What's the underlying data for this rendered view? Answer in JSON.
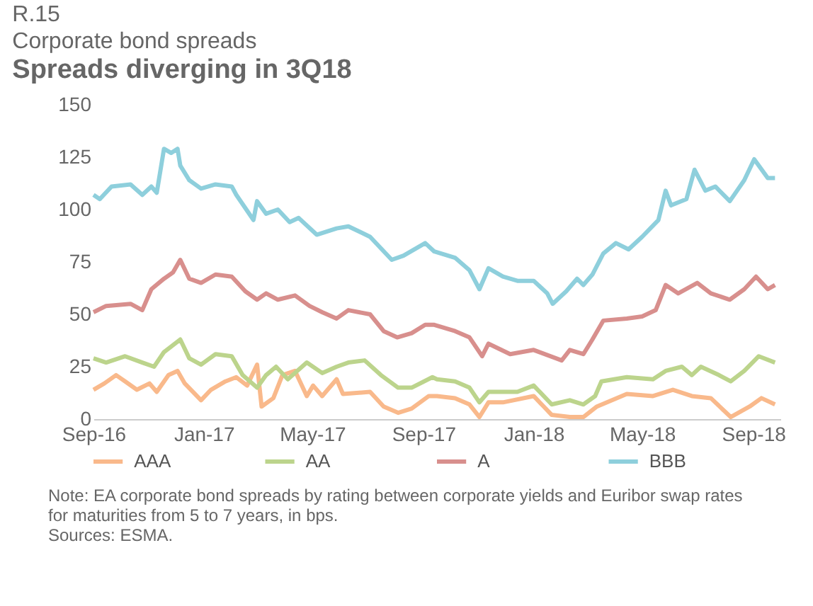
{
  "chart_data": {
    "type": "line",
    "title": "Corporate bond spreads",
    "subtitle": "Spreads diverging in 3Q18",
    "annotations": [
      "R.15",
      "Note: EA corporate bond spreads by rating between corporate yields and Euribor swap rates for maturities from 5 to 7 years, in bps.",
      "Sources: ESMA."
    ],
    "xlim": [
      "2016-09-01",
      "2018-10-01"
    ],
    "xticks": [
      {
        "value": "2016-09-01",
        "label": "Sep-16"
      },
      {
        "value": "2017-01-01",
        "label": "Jan-17"
      },
      {
        "value": "2017-05-01",
        "label": "May-17"
      },
      {
        "value": "2017-09-01",
        "label": "Sep-17"
      },
      {
        "value": "2018-01-01",
        "label": "Jan-18"
      },
      {
        "value": "2018-05-01",
        "label": "May-18"
      },
      {
        "value": "2018-09-01",
        "label": "Sep-18"
      }
    ],
    "ylim": [
      0,
      150
    ],
    "yticks": [
      0,
      25,
      50,
      75,
      100,
      125,
      150
    ],
    "grid": false,
    "legend": "bottom",
    "marker": "none",
    "line_style": "solid",
    "series": [
      {
        "name": "AAA",
        "color": "#f9b98b",
        "x": [
          "2016-09-01",
          "2016-09-13",
          "2016-09-26",
          "2016-10-06",
          "2016-10-19",
          "2016-11-02",
          "2016-11-10",
          "2016-11-23",
          "2016-12-03",
          "2016-12-11",
          "2016-12-29",
          "2017-01-09",
          "2017-01-25",
          "2017-02-06",
          "2017-02-18",
          "2017-03-01",
          "2017-03-06",
          "2017-03-19",
          "2017-03-29",
          "2017-04-12",
          "2017-04-25",
          "2017-05-02",
          "2017-05-12",
          "2017-05-28",
          "2017-06-04",
          "2017-07-04",
          "2017-07-19",
          "2017-08-04",
          "2017-08-19",
          "2017-09-07",
          "2017-09-16",
          "2017-10-06",
          "2017-10-22",
          "2017-11-02",
          "2017-11-12",
          "2017-11-28",
          "2018-01-01",
          "2018-01-21",
          "2018-02-10",
          "2018-02-25",
          "2018-03-12",
          "2018-04-14",
          "2018-05-13",
          "2018-06-04",
          "2018-06-25",
          "2018-07-16",
          "2018-08-07",
          "2018-08-28",
          "2018-09-10",
          "2018-09-25"
        ],
        "values": [
          14,
          17,
          21,
          18,
          14,
          17,
          13,
          21,
          23,
          17,
          9,
          14,
          18,
          20,
          16,
          26,
          6,
          10,
          21,
          23,
          11,
          16,
          11,
          19,
          12,
          13,
          6,
          3,
          5,
          11,
          11,
          10,
          7,
          1,
          8,
          8,
          11,
          2,
          1,
          1,
          6,
          12,
          11,
          14,
          11,
          10,
          1,
          6,
          10,
          7
        ]
      },
      {
        "name": "AA",
        "color": "#bcd48c",
        "x": [
          "2016-09-01",
          "2016-09-15",
          "2016-10-06",
          "2016-10-25",
          "2016-11-07",
          "2016-11-18",
          "2016-12-06",
          "2016-12-16",
          "2016-12-29",
          "2017-01-14",
          "2017-02-01",
          "2017-02-13",
          "2017-03-01",
          "2017-03-11",
          "2017-03-22",
          "2017-04-04",
          "2017-04-25",
          "2017-05-12",
          "2017-05-28",
          "2017-06-10",
          "2017-06-28",
          "2017-07-16",
          "2017-08-04",
          "2017-08-19",
          "2017-09-11",
          "2017-09-16",
          "2017-10-06",
          "2017-10-22",
          "2017-11-02",
          "2017-11-12",
          "2017-12-14",
          "2018-01-01",
          "2018-01-21",
          "2018-02-10",
          "2018-02-25",
          "2018-03-10",
          "2018-03-17",
          "2018-04-14",
          "2018-05-13",
          "2018-05-27",
          "2018-06-14",
          "2018-06-25",
          "2018-07-05",
          "2018-07-25",
          "2018-08-07",
          "2018-08-22",
          "2018-09-07",
          "2018-09-25"
        ],
        "values": [
          29,
          27,
          30,
          27,
          25,
          32,
          38,
          29,
          26,
          31,
          30,
          21,
          15,
          21,
          25,
          19,
          27,
          22,
          25,
          27,
          28,
          21,
          15,
          15,
          20,
          19,
          18,
          15,
          8,
          13,
          13,
          16,
          7,
          9,
          7,
          11,
          18,
          20,
          19,
          23,
          25,
          21,
          25,
          21,
          18,
          23,
          30,
          27
        ]
      },
      {
        "name": "A",
        "color": "#d88f8d",
        "x": [
          "2016-09-01",
          "2016-09-15",
          "2016-10-12",
          "2016-10-25",
          "2016-11-04",
          "2016-11-18",
          "2016-11-28",
          "2016-12-06",
          "2016-12-16",
          "2016-12-29",
          "2017-01-14",
          "2017-02-01",
          "2017-02-16",
          "2017-03-01",
          "2017-03-11",
          "2017-03-24",
          "2017-04-12",
          "2017-04-28",
          "2017-05-12",
          "2017-05-28",
          "2017-06-10",
          "2017-07-04",
          "2017-07-19",
          "2017-08-03",
          "2017-08-19",
          "2017-09-03",
          "2017-09-13",
          "2017-10-06",
          "2017-10-22",
          "2017-11-05",
          "2017-11-12",
          "2017-12-06",
          "2018-01-01",
          "2018-02-01",
          "2018-02-10",
          "2018-02-25",
          "2018-03-07",
          "2018-03-19",
          "2018-04-14",
          "2018-05-01",
          "2018-05-16",
          "2018-05-27",
          "2018-06-10",
          "2018-07-01",
          "2018-07-16",
          "2018-08-06",
          "2018-08-22",
          "2018-09-04",
          "2018-09-17",
          "2018-09-25"
        ],
        "values": [
          51,
          54,
          55,
          52,
          62,
          67,
          70,
          76,
          67,
          65,
          69,
          68,
          61,
          57,
          60,
          57,
          59,
          54,
          51,
          48,
          52,
          50,
          42,
          39,
          41,
          45,
          45,
          42,
          39,
          30,
          36,
          31,
          33,
          28,
          33,
          31,
          38,
          47,
          48,
          49,
          52,
          64,
          60,
          65,
          60,
          57,
          62,
          68,
          62,
          64
        ]
      },
      {
        "name": "BBB",
        "color": "#8ecfdc",
        "x": [
          "2016-09-01",
          "2016-09-08",
          "2016-09-21",
          "2016-10-12",
          "2016-10-25",
          "2016-11-04",
          "2016-11-10",
          "2016-11-18",
          "2016-11-26",
          "2016-12-03",
          "2016-12-06",
          "2016-12-16",
          "2016-12-29",
          "2017-01-14",
          "2017-02-01",
          "2017-02-06",
          "2017-02-25",
          "2017-03-01",
          "2017-03-11",
          "2017-03-24",
          "2017-04-06",
          "2017-04-16",
          "2017-05-06",
          "2017-05-28",
          "2017-06-10",
          "2017-07-04",
          "2017-07-28",
          "2017-08-10",
          "2017-09-03",
          "2017-09-13",
          "2017-10-06",
          "2017-10-22",
          "2017-11-02",
          "2017-11-12",
          "2017-11-28",
          "2017-12-14",
          "2018-01-01",
          "2018-01-16",
          "2018-01-22",
          "2018-02-06",
          "2018-02-18",
          "2018-02-25",
          "2018-03-07",
          "2018-03-19",
          "2018-04-02",
          "2018-04-16",
          "2018-05-01",
          "2018-05-19",
          "2018-05-27",
          "2018-06-02",
          "2018-06-19",
          "2018-06-28",
          "2018-07-10",
          "2018-07-21",
          "2018-08-06",
          "2018-08-22",
          "2018-09-02",
          "2018-09-17",
          "2018-09-25"
        ],
        "values": [
          107,
          105,
          111,
          112,
          107,
          111,
          108,
          129,
          127,
          129,
          121,
          114,
          110,
          112,
          111,
          107,
          95,
          104,
          98,
          100,
          94,
          96,
          88,
          91,
          92,
          87,
          76,
          78,
          84,
          80,
          77,
          71,
          62,
          72,
          68,
          66,
          66,
          60,
          55,
          61,
          67,
          64,
          69,
          79,
          84,
          81,
          87,
          95,
          109,
          102,
          105,
          119,
          109,
          111,
          104,
          114,
          124,
          115,
          115
        ]
      }
    ]
  }
}
